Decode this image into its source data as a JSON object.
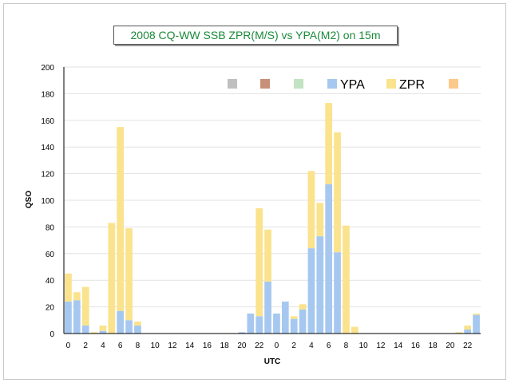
{
  "chart_data": {
    "type": "bar",
    "stacked": true,
    "title": "2008 CQ-WW SSB   ZPR(M/S) vs YPA(M2) on 15m",
    "xlabel": "UTC",
    "ylabel": "QSO",
    "ylim": [
      0,
      200
    ],
    "yticks": [
      0,
      20,
      40,
      60,
      80,
      100,
      120,
      140,
      160,
      180,
      200
    ],
    "grid": true,
    "legend_position": "top",
    "categories": [
      0,
      1,
      2,
      3,
      4,
      5,
      6,
      7,
      8,
      9,
      10,
      11,
      12,
      13,
      14,
      15,
      16,
      17,
      18,
      19,
      20,
      21,
      22,
      23,
      0,
      1,
      2,
      3,
      4,
      5,
      6,
      7,
      8,
      9,
      10,
      11,
      12,
      13,
      14,
      15,
      16,
      17,
      18,
      19,
      20,
      21,
      22,
      23
    ],
    "xtick_labels": [
      "0",
      "",
      "2",
      "",
      "4",
      "",
      "6",
      "",
      "8",
      "",
      "10",
      "",
      "12",
      "",
      "14",
      "",
      "16",
      "",
      "18",
      "",
      "20",
      "",
      "22",
      "",
      "0",
      "",
      "2",
      "",
      "4",
      "",
      "6",
      "",
      "8",
      "",
      "10",
      "",
      "12",
      "",
      "14",
      "",
      "16",
      "",
      "18",
      "",
      "20",
      "",
      "22",
      ""
    ],
    "series": [
      {
        "name": "YPA",
        "color": "#a6c8f0",
        "values": [
          24,
          25,
          6,
          0,
          2,
          0,
          17,
          10,
          6,
          0,
          0,
          0,
          0,
          0,
          0,
          0,
          0,
          0,
          0,
          0,
          1,
          15,
          13,
          39,
          15,
          24,
          11,
          18,
          64,
          73,
          112,
          61,
          0,
          0,
          0,
          0,
          0,
          0,
          0,
          0,
          0,
          0,
          0,
          0,
          0,
          0,
          3,
          14
        ]
      },
      {
        "name": "ZPR",
        "color": "#fae38c",
        "values": [
          21,
          6,
          29,
          1,
          4,
          83,
          138,
          69,
          3,
          0,
          0,
          0,
          0,
          0,
          0,
          0,
          0,
          0,
          0,
          0,
          0,
          0,
          81,
          39,
          0,
          0,
          2,
          4,
          58,
          25,
          61,
          90,
          81,
          5,
          0,
          0,
          0,
          0,
          0,
          0,
          0,
          0,
          0,
          0,
          0,
          1,
          3,
          1
        ]
      }
    ],
    "legend": [
      {
        "name": "",
        "color": "#c0c0c0"
      },
      {
        "name": "",
        "color": "#c8907a"
      },
      {
        "name": "",
        "color": "#c2e4c2"
      },
      {
        "name": "YPA",
        "color": "#a6c8f0"
      },
      {
        "name": "ZPR",
        "color": "#fae38c"
      },
      {
        "name": "",
        "color": "#fbc98a"
      }
    ]
  }
}
